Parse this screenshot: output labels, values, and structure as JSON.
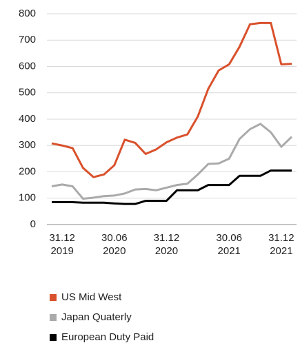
{
  "chart_data": {
    "type": "line",
    "categories": [
      null,
      "31.12\n2019",
      null,
      null,
      null,
      null,
      "30.06\n2020",
      null,
      null,
      null,
      null,
      "31.12\n2020",
      null,
      null,
      null,
      null,
      null,
      "30.06\n2021",
      null,
      null,
      null,
      null,
      "31.12\n2021",
      null
    ],
    "series": [
      {
        "name": "US Mid West",
        "color": "#d9512c",
        "values": [
          308,
          300,
          290,
          215,
          180,
          190,
          225,
          322,
          310,
          268,
          285,
          312,
          330,
          342,
          410,
          515,
          585,
          608,
          675,
          760,
          765,
          765,
          608,
          610
        ]
      },
      {
        "name": "Japan Quaterly",
        "color": "#aaaaaa",
        "values": [
          145,
          152,
          145,
          98,
          102,
          108,
          110,
          118,
          133,
          135,
          130,
          140,
          150,
          155,
          190,
          230,
          232,
          250,
          325,
          362,
          382,
          350,
          295,
          333
        ]
      },
      {
        "name": "European Duty Paid",
        "color": "#000000",
        "values": [
          85,
          85,
          85,
          83,
          83,
          83,
          80,
          78,
          78,
          90,
          90,
          90,
          130,
          130,
          130,
          150,
          150,
          150,
          185,
          185,
          185,
          205,
          205,
          205
        ]
      }
    ],
    "ylim": [
      0,
      800
    ],
    "yticks": [
      0,
      100,
      200,
      300,
      400,
      500,
      600,
      700,
      800
    ],
    "grid": true
  }
}
